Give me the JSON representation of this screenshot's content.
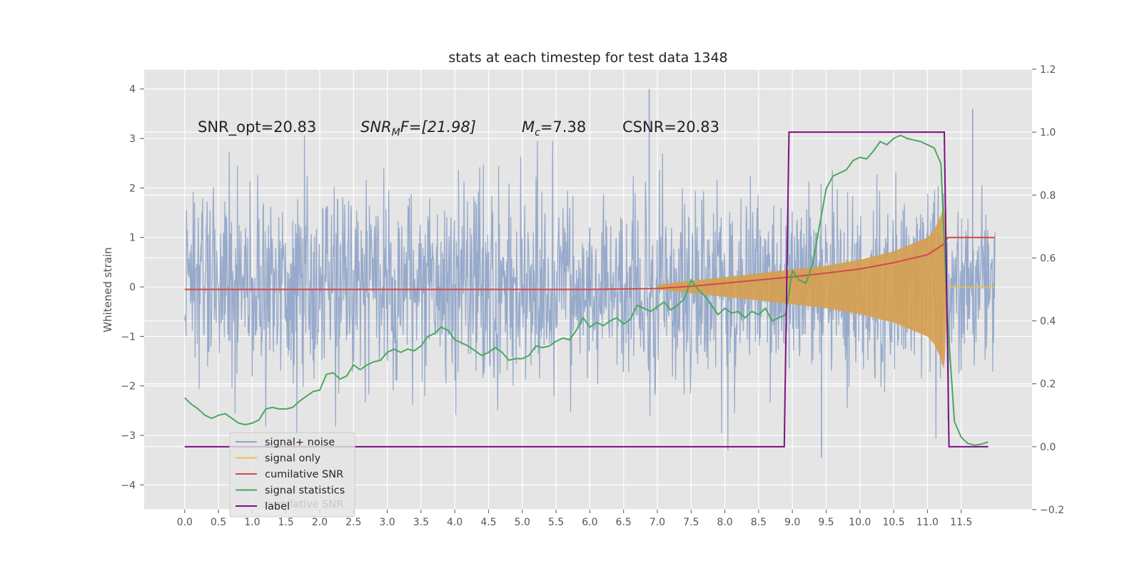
{
  "chart_data": {
    "type": "line",
    "title": "stats at each timestep for test data 1348",
    "ylabel": "Whitened strain",
    "y2label": "",
    "xlim": [
      -0.6,
      12.55
    ],
    "ylim": [
      -4.5,
      4.4
    ],
    "y2lim": [
      -0.2,
      1.2
    ],
    "xticks": [
      "0.0",
      "0.5",
      "1.0",
      "1.5",
      "2.0",
      "2.5",
      "3.0",
      "3.5",
      "4.0",
      "4.5",
      "5.0",
      "5.5",
      "6.0",
      "6.5",
      "7.0",
      "7.5",
      "8.0",
      "8.5",
      "9.0",
      "9.5",
      "10.0",
      "10.5",
      "11.0",
      "11.5"
    ],
    "yticks": [
      "4",
      "3",
      "2",
      "1",
      "0",
      "−1",
      "−2",
      "−3",
      "−4"
    ],
    "y2ticks": [
      "1.2",
      "1.0",
      "0.8",
      "0.6",
      "0.4",
      "0.2",
      "0.0",
      "−0.2"
    ],
    "grid": true,
    "background": "#e5e5e5",
    "legend_position": "bottom-left",
    "annotations": {
      "snr_opt": "SNR_opt=20.83",
      "snr_mf_main": "SNR",
      "snr_mf_sub": "M",
      "snr_mf_rest": "F=[21.98]",
      "mc_main": "M",
      "mc_sub": "c",
      "mc_rest": "=7.38",
      "csnr": "CSNR=20.83"
    },
    "legend": [
      {
        "label": "signal+ noise",
        "color": "#8ea3c8"
      },
      {
        "label": "signal only",
        "color": "#f0c050"
      },
      {
        "label": "cumilative SNR",
        "color": "#d4484a"
      },
      {
        "label": "signal statistics",
        "color": "#4aa860"
      },
      {
        "label": "label",
        "color": "#7b1280"
      }
    ],
    "legend_ghost_text": "cumilative SNR",
    "series": [
      {
        "name": "signal+ noise",
        "axis": "left",
        "color": "#8ea3c8",
        "description": "white noise, unit variance, sampled over t = 0 to 12",
        "x_range": [
          0.0,
          12.0
        ],
        "typical_band": [
          -2.0,
          2.0
        ],
        "peak_max": 4.0,
        "peak_min": -3.45
      },
      {
        "name": "signal only",
        "axis": "left",
        "color": "#f0c050",
        "description": "chirp waveform with envelope growing toward merger",
        "envelope": {
          "x": [
            7.0,
            8.0,
            9.0,
            9.5,
            10.0,
            10.5,
            11.0,
            11.1,
            11.2,
            11.25,
            11.3
          ],
          "amp": [
            0.05,
            0.2,
            0.35,
            0.43,
            0.55,
            0.72,
            1.0,
            1.15,
            1.45,
            1.7,
            0.0
          ]
        }
      },
      {
        "name": "cumilative SNR",
        "axis": "right",
        "color": "#d4484a",
        "x": [
          0.0,
          6.0,
          7.0,
          7.5,
          8.0,
          8.5,
          9.0,
          9.5,
          10.0,
          10.5,
          11.0,
          11.25,
          11.3,
          12.0
        ],
        "y": [
          0.5,
          0.5,
          0.503,
          0.51,
          0.52,
          0.53,
          0.54,
          0.552,
          0.565,
          0.585,
          0.61,
          0.645,
          0.665,
          0.665
        ]
      },
      {
        "name": "signal statistics",
        "axis": "right",
        "color": "#4aa860",
        "x": [
          0.0,
          0.1,
          0.2,
          0.3,
          0.4,
          0.5,
          0.6,
          0.7,
          0.8,
          0.9,
          1.0,
          1.1,
          1.2,
          1.3,
          1.4,
          1.5,
          1.6,
          1.7,
          1.8,
          1.9,
          2.0,
          2.1,
          2.2,
          2.3,
          2.4,
          2.5,
          2.6,
          2.7,
          2.8,
          2.9,
          3.0,
          3.1,
          3.2,
          3.3,
          3.4,
          3.5,
          3.6,
          3.7,
          3.8,
          3.9,
          4.0,
          4.1,
          4.2,
          4.3,
          4.4,
          4.5,
          4.6,
          4.7,
          4.8,
          4.9,
          5.0,
          5.1,
          5.2,
          5.3,
          5.4,
          5.5,
          5.6,
          5.7,
          5.8,
          5.9,
          6.0,
          6.1,
          6.2,
          6.3,
          6.4,
          6.5,
          6.6,
          6.7,
          6.8,
          6.9,
          7.0,
          7.1,
          7.2,
          7.3,
          7.4,
          7.5,
          7.6,
          7.7,
          7.8,
          7.9,
          8.0,
          8.1,
          8.2,
          8.3,
          8.4,
          8.5,
          8.6,
          8.7,
          8.8,
          8.9,
          9.0,
          9.1,
          9.2,
          9.3,
          9.4,
          9.5,
          9.6,
          9.7,
          9.8,
          9.9,
          10.0,
          10.1,
          10.2,
          10.3,
          10.4,
          10.5,
          10.6,
          10.7,
          10.8,
          10.9,
          11.0,
          11.1,
          11.2,
          11.3,
          11.4,
          11.5,
          11.6,
          11.7,
          11.8,
          11.9
        ],
        "y": [
          0.155,
          0.135,
          0.12,
          0.1,
          0.09,
          0.1,
          0.105,
          0.09,
          0.075,
          0.07,
          0.075,
          0.085,
          0.12,
          0.125,
          0.12,
          0.12,
          0.125,
          0.145,
          0.16,
          0.175,
          0.18,
          0.23,
          0.235,
          0.215,
          0.225,
          0.26,
          0.245,
          0.26,
          0.27,
          0.275,
          0.3,
          0.31,
          0.3,
          0.31,
          0.305,
          0.32,
          0.35,
          0.36,
          0.38,
          0.37,
          0.34,
          0.33,
          0.32,
          0.305,
          0.29,
          0.3,
          0.315,
          0.3,
          0.275,
          0.28,
          0.28,
          0.29,
          0.32,
          0.315,
          0.32,
          0.335,
          0.345,
          0.34,
          0.37,
          0.41,
          0.38,
          0.395,
          0.385,
          0.4,
          0.41,
          0.39,
          0.405,
          0.45,
          0.44,
          0.43,
          0.445,
          0.46,
          0.435,
          0.45,
          0.47,
          0.53,
          0.5,
          0.48,
          0.45,
          0.42,
          0.44,
          0.425,
          0.43,
          0.41,
          0.43,
          0.42,
          0.44,
          0.4,
          0.41,
          0.42,
          0.56,
          0.53,
          0.52,
          0.58,
          0.7,
          0.82,
          0.86,
          0.87,
          0.88,
          0.91,
          0.92,
          0.915,
          0.94,
          0.97,
          0.96,
          0.98,
          0.99,
          0.98,
          0.975,
          0.97,
          0.96,
          0.95,
          0.9,
          0.4,
          0.08,
          0.03,
          0.01,
          0.005,
          0.008,
          0.015
        ]
      },
      {
        "name": "label",
        "axis": "right",
        "color": "#7b1280",
        "x": [
          0.0,
          8.88,
          8.95,
          11.25,
          11.32,
          11.9
        ],
        "y": [
          0.0,
          0.0,
          1.0,
          1.0,
          0.0,
          0.0
        ]
      }
    ]
  }
}
